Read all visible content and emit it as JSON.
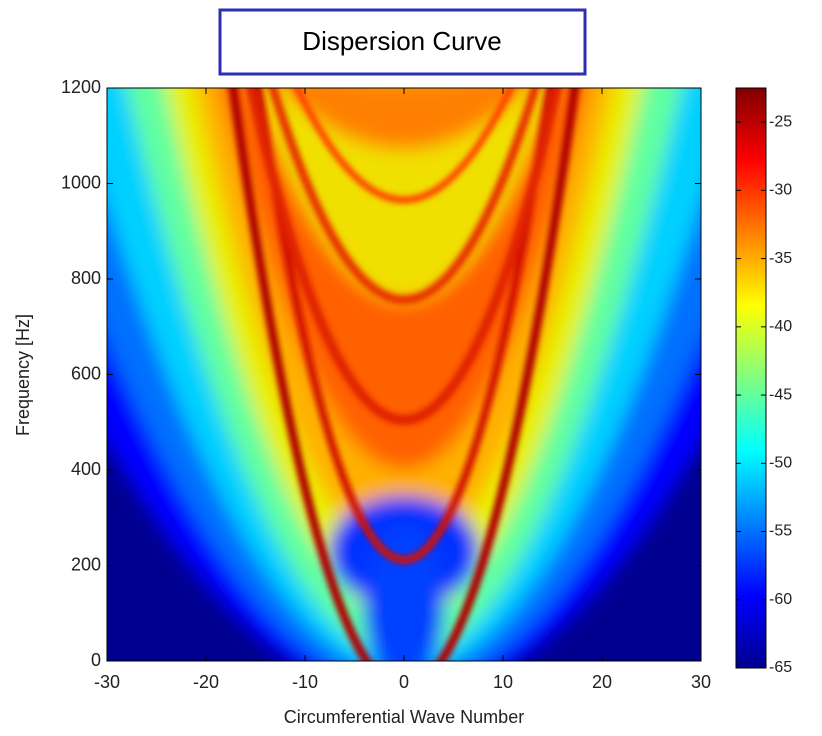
{
  "chart_data": {
    "type": "heatmap",
    "title": "Dispersion Curve",
    "xlabel": "Circumferential Wave Number",
    "ylabel": "Frequency [Hz]",
    "xlim": [
      -30,
      30
    ],
    "xticks": [
      -30,
      -20,
      -10,
      0,
      10,
      20,
      30
    ],
    "ylim": [
      0,
      1200
    ],
    "yticks": [
      0,
      200,
      400,
      600,
      800,
      1000,
      1200
    ],
    "colormap": "jet",
    "clim": [
      -65,
      -22.5
    ],
    "cticks": [
      -65,
      -60,
      -55,
      -50,
      -45,
      -40,
      -35,
      -30,
      -25
    ]
  }
}
